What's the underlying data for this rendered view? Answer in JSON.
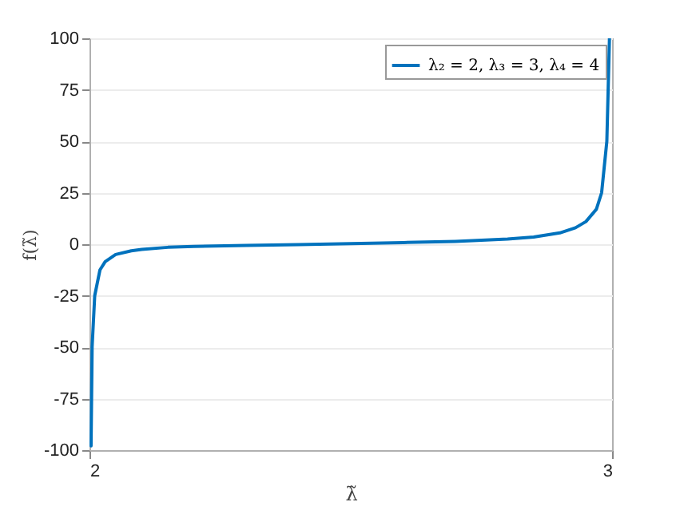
{
  "chart_data": {
    "type": "line",
    "xlabel": "λ̃",
    "ylabel": "f(λ̃)",
    "x": [
      2.003,
      2.005,
      2.01,
      2.02,
      2.03,
      2.05,
      2.08,
      2.1,
      2.15,
      2.2,
      2.3,
      2.4,
      2.5,
      2.6,
      2.7,
      2.8,
      2.85,
      2.9,
      2.93,
      2.95,
      2.97,
      2.98,
      2.99,
      2.995
    ],
    "series": [
      {
        "name": "λ₂ = 2, λ₃ = 3, λ₄ = 4",
        "color": "#0072bd",
        "values": [
          -98,
          -50,
          -25,
          -12.5,
          -8.5,
          -5,
          -3.2,
          -2.5,
          -1.5,
          -1.1,
          -0.6,
          -0.2,
          0.3,
          0.8,
          1.4,
          2.5,
          3.5,
          5.5,
          8,
          11,
          17,
          25,
          50,
          100
        ]
      }
    ],
    "xlim": [
      2,
      3
    ],
    "xticks": [
      2,
      3
    ],
    "ylim": [
      -100,
      100
    ],
    "yticks": [
      -100,
      -75,
      -50,
      -25,
      0,
      25,
      50,
      75,
      100
    ],
    "grid": "y",
    "legend": "top right",
    "line_style": "solid",
    "marker": "none"
  }
}
